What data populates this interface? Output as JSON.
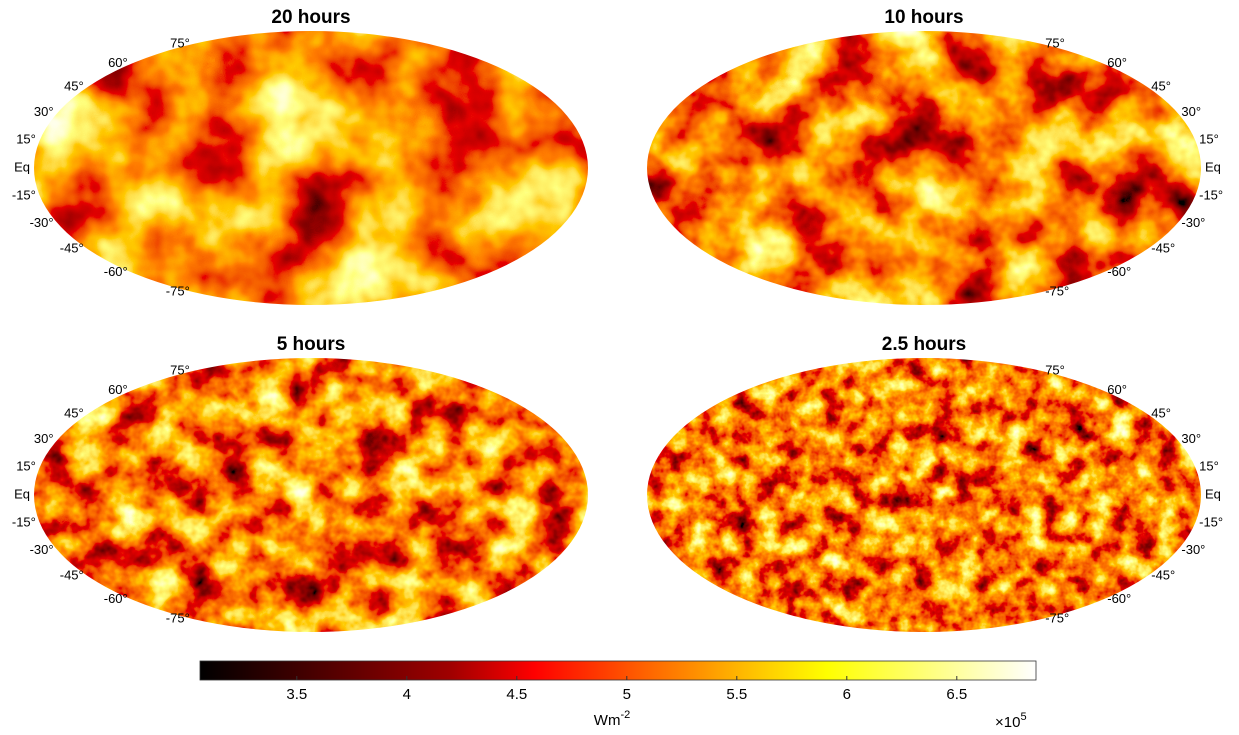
{
  "panels": [
    {
      "title": "20 hours",
      "label_side": "left"
    },
    {
      "title": "10 hours",
      "label_side": "right"
    },
    {
      "title": "5 hours",
      "label_side": "left"
    },
    {
      "title": "2.5 hours",
      "label_side": "right"
    }
  ],
  "lat_labels": [
    {
      "value": 75,
      "label": "75°"
    },
    {
      "value": 60,
      "label": "60°"
    },
    {
      "value": 45,
      "label": "45°"
    },
    {
      "value": 30,
      "label": "30°"
    },
    {
      "value": 15,
      "label": "15°"
    },
    {
      "value": 0,
      "label": "Eq"
    },
    {
      "value": -15,
      "label": "-15°"
    },
    {
      "value": -30,
      "label": "-30°"
    },
    {
      "value": -45,
      "label": "-45°"
    },
    {
      "value": -60,
      "label": "-60°"
    },
    {
      "value": -75,
      "label": "-75°"
    }
  ],
  "colorbar": {
    "lim": [
      3.06,
      6.86
    ],
    "ticks": [
      3.5,
      4,
      4.5,
      5,
      5.5,
      6,
      6.5
    ],
    "label": {
      "base": "Wm",
      "sup": "-2"
    },
    "multiplier": {
      "base": "×10",
      "sup": "5"
    }
  }
}
